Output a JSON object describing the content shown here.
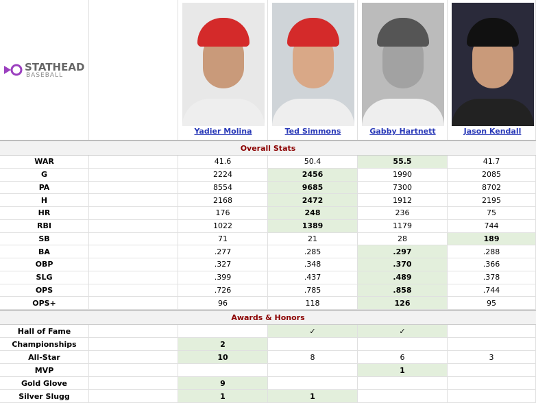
{
  "logo": {
    "name": "STATHEAD",
    "sub": "BASEBALL"
  },
  "players": [
    "Yadier Molina",
    "Ted Simmons",
    "Gabby Hartnett",
    "Jason Kendall"
  ],
  "sections": [
    {
      "title": "Overall Stats",
      "rows": [
        {
          "label": "WAR",
          "values": [
            "41.6",
            "50.4",
            "55.5",
            "41.7"
          ],
          "highlight": [
            2
          ]
        },
        {
          "label": "G",
          "values": [
            "2224",
            "2456",
            "1990",
            "2085"
          ],
          "highlight": [
            1
          ]
        },
        {
          "label": "PA",
          "values": [
            "8554",
            "9685",
            "7300",
            "8702"
          ],
          "highlight": [
            1
          ]
        },
        {
          "label": "H",
          "values": [
            "2168",
            "2472",
            "1912",
            "2195"
          ],
          "highlight": [
            1
          ]
        },
        {
          "label": "HR",
          "values": [
            "176",
            "248",
            "236",
            "75"
          ],
          "highlight": [
            1
          ]
        },
        {
          "label": "RBI",
          "values": [
            "1022",
            "1389",
            "1179",
            "744"
          ],
          "highlight": [
            1
          ]
        },
        {
          "label": "SB",
          "values": [
            "71",
            "21",
            "28",
            "189"
          ],
          "highlight": [
            3
          ]
        },
        {
          "label": "BA",
          "values": [
            ".277",
            ".285",
            ".297",
            ".288"
          ],
          "highlight": [
            2
          ]
        },
        {
          "label": "OBP",
          "values": [
            ".327",
            ".348",
            ".370",
            ".366"
          ],
          "highlight": [
            2
          ]
        },
        {
          "label": "SLG",
          "values": [
            ".399",
            ".437",
            ".489",
            ".378"
          ],
          "highlight": [
            2
          ]
        },
        {
          "label": "OPS",
          "values": [
            ".726",
            ".785",
            ".858",
            ".744"
          ],
          "highlight": [
            2
          ]
        },
        {
          "label": "OPS+",
          "values": [
            "96",
            "118",
            "126",
            "95"
          ],
          "highlight": [
            2
          ]
        }
      ]
    },
    {
      "title": "Awards & Honors",
      "rows": [
        {
          "label": "Hall of Fame",
          "values": [
            null,
            "✓",
            "✓",
            null
          ],
          "highlight": [
            1,
            2
          ]
        },
        {
          "label": "Championships",
          "values": [
            "2",
            null,
            null,
            null
          ],
          "highlight": [
            0
          ]
        },
        {
          "label": "All-Star",
          "values": [
            "10",
            "8",
            "6",
            "3"
          ],
          "highlight": [
            0
          ]
        },
        {
          "label": "MVP",
          "values": [
            null,
            null,
            "1",
            null
          ],
          "highlight": [
            2
          ]
        },
        {
          "label": "Gold Glove",
          "values": [
            "9",
            null,
            null,
            null
          ],
          "highlight": [
            0
          ]
        },
        {
          "label": "Silver Slugg",
          "values": [
            "1",
            "1",
            null,
            null
          ],
          "highlight": [
            0,
            1
          ]
        }
      ]
    }
  ]
}
